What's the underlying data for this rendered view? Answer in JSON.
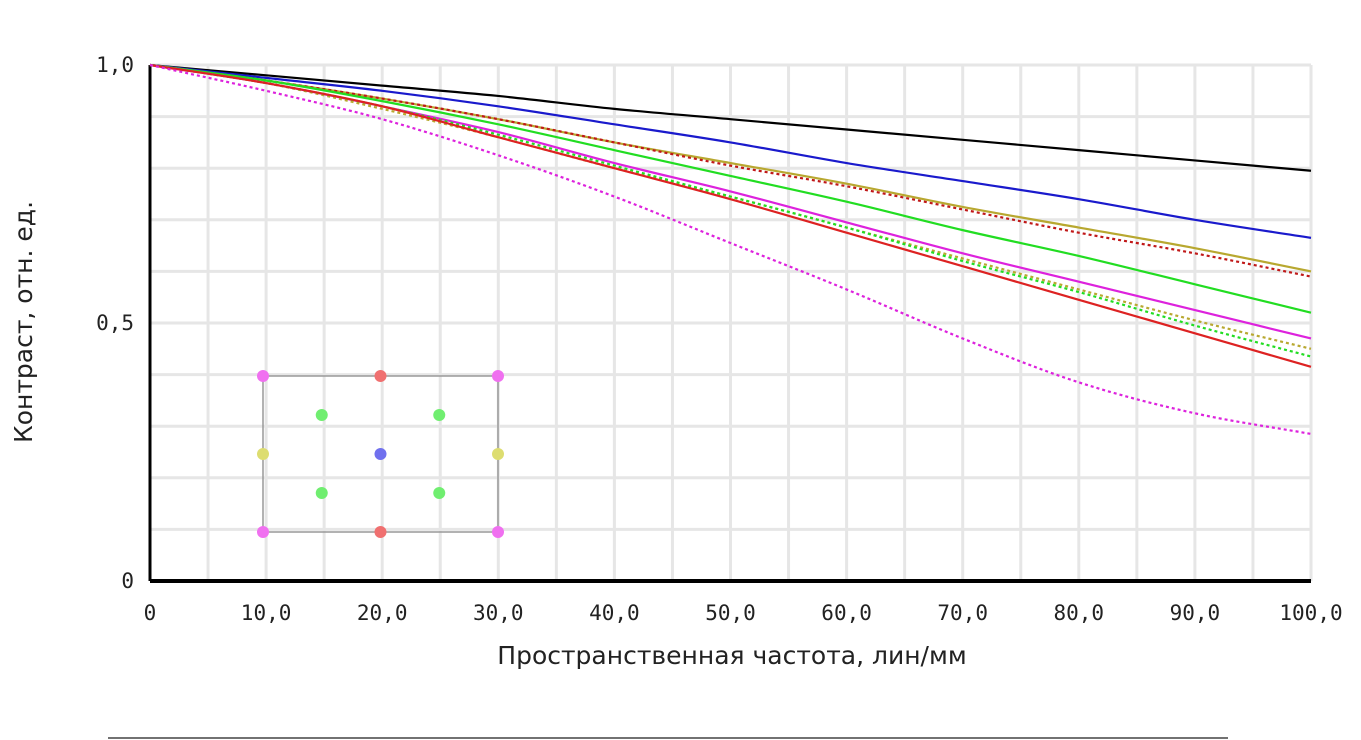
{
  "chart_data": {
    "type": "line",
    "title": "",
    "xlabel": "Пространственная частота, лин/мм",
    "ylabel": "Контраст, отн. ед.",
    "xlim": [
      0,
      100
    ],
    "ylim": [
      0,
      1
    ],
    "grid": true,
    "x_ticks": [
      0,
      10,
      20,
      30,
      40,
      50,
      60,
      70,
      80,
      90,
      100
    ],
    "x_tick_labels": [
      "0",
      "10,0",
      "20,0",
      "30,0",
      "40,0",
      "50,0",
      "60,0",
      "70,0",
      "80,0",
      "90,0",
      "100,0"
    ],
    "y_ticks": [
      0,
      0.5,
      1.0
    ],
    "y_tick_labels": [
      "0",
      "0,5",
      "1,0"
    ],
    "x": [
      0,
      10,
      20,
      30,
      40,
      50,
      60,
      70,
      80,
      90,
      100
    ],
    "series": [
      {
        "color": "#000000",
        "dash": false,
        "values": [
          1.0,
          0.98,
          0.96,
          0.94,
          0.915,
          0.895,
          0.875,
          0.855,
          0.835,
          0.815,
          0.795
        ]
      },
      {
        "color": "#1a1acc",
        "dash": false,
        "values": [
          1.0,
          0.975,
          0.95,
          0.92,
          0.885,
          0.85,
          0.81,
          0.775,
          0.74,
          0.7,
          0.665
        ]
      },
      {
        "color": "#b8a830",
        "dash": false,
        "values": [
          1.0,
          0.97,
          0.935,
          0.895,
          0.85,
          0.81,
          0.77,
          0.725,
          0.685,
          0.645,
          0.6
        ]
      },
      {
        "color": "#c01818",
        "dash": true,
        "values": [
          1.0,
          0.97,
          0.935,
          0.895,
          0.85,
          0.805,
          0.765,
          0.72,
          0.675,
          0.635,
          0.59
        ]
      },
      {
        "color": "#22dd22",
        "dash": false,
        "values": [
          1.0,
          0.97,
          0.93,
          0.885,
          0.835,
          0.785,
          0.735,
          0.68,
          0.63,
          0.575,
          0.52
        ]
      },
      {
        "color": "#dd22dd",
        "dash": false,
        "values": [
          1.0,
          0.965,
          0.92,
          0.87,
          0.81,
          0.755,
          0.695,
          0.635,
          0.58,
          0.525,
          0.47
        ]
      },
      {
        "color": "#b8a830",
        "dash": true,
        "values": [
          1.0,
          0.965,
          0.915,
          0.86,
          0.8,
          0.745,
          0.685,
          0.625,
          0.565,
          0.505,
          0.45
        ]
      },
      {
        "color": "#22dd22",
        "dash": true,
        "values": [
          1.0,
          0.965,
          0.92,
          0.865,
          0.805,
          0.745,
          0.685,
          0.62,
          0.56,
          0.495,
          0.435
        ]
      },
      {
        "color": "#dd2222",
        "dash": false,
        "values": [
          1.0,
          0.965,
          0.92,
          0.86,
          0.8,
          0.74,
          0.675,
          0.61,
          0.545,
          0.48,
          0.415
        ]
      },
      {
        "color": "#dd22dd",
        "dash": true,
        "values": [
          1.0,
          0.95,
          0.895,
          0.825,
          0.745,
          0.655,
          0.565,
          0.47,
          0.385,
          0.325,
          0.285
        ]
      }
    ]
  },
  "field_map": {
    "points": [
      {
        "col": 0,
        "row": 0,
        "color": "#f070f0"
      },
      {
        "col": 2,
        "row": 0,
        "color": "#f07070"
      },
      {
        "col": 4,
        "row": 0,
        "color": "#f070f0"
      },
      {
        "col": 1,
        "row": 1,
        "color": "#70ee70"
      },
      {
        "col": 3,
        "row": 1,
        "color": "#70ee70"
      },
      {
        "col": 0,
        "row": 2,
        "color": "#dddd70"
      },
      {
        "col": 2,
        "row": 2,
        "color": "#7070ee"
      },
      {
        "col": 4,
        "row": 2,
        "color": "#dddd70"
      },
      {
        "col": 1,
        "row": 3,
        "color": "#70ee70"
      },
      {
        "col": 3,
        "row": 3,
        "color": "#70ee70"
      },
      {
        "col": 0,
        "row": 4,
        "color": "#f070f0"
      },
      {
        "col": 2,
        "row": 4,
        "color": "#f07070"
      },
      {
        "col": 4,
        "row": 4,
        "color": "#f070f0"
      }
    ]
  }
}
